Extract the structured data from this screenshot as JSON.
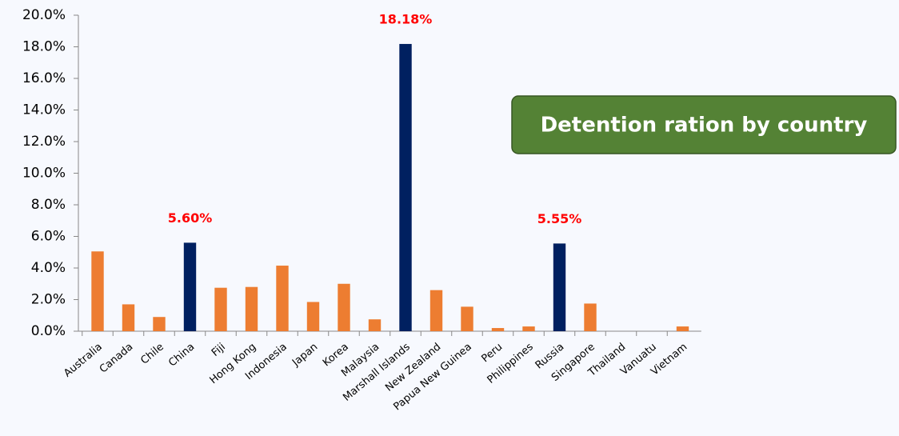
{
  "chart_data": {
    "type": "bar",
    "title": "Detention ration by country",
    "categories": [
      "Australia",
      "Canada",
      "Chile",
      "China",
      "Fiji",
      "Hong Kong",
      "Indonesia",
      "Japan",
      "Korea",
      "Malaysia",
      "Marshall Islands",
      "New Zealand",
      "Papua New Guinea",
      "Peru",
      "Philippines",
      "Russia",
      "Singapore",
      "Thailand",
      "Vanuatu",
      "Vietnam"
    ],
    "values": [
      5.05,
      1.7,
      0.9,
      5.6,
      2.75,
      2.8,
      4.15,
      1.85,
      3.0,
      0.75,
      18.18,
      2.6,
      1.55,
      0.2,
      0.3,
      5.55,
      1.75,
      0,
      0,
      0.3
    ],
    "value_labels": [
      null,
      null,
      null,
      "5.60%",
      null,
      null,
      null,
      null,
      null,
      null,
      "18.18%",
      null,
      null,
      null,
      null,
      "5.55%",
      null,
      null,
      null,
      null
    ],
    "colors": [
      "#ed7d31",
      "#ed7d31",
      "#ed7d31",
      "#002060",
      "#ed7d31",
      "#ed7d31",
      "#ed7d31",
      "#ed7d31",
      "#ed7d31",
      "#ed7d31",
      "#002060",
      "#ed7d31",
      "#ed7d31",
      "#ed7d31",
      "#ed7d31",
      "#002060",
      "#ed7d31",
      "#ed7d31",
      "#ed7d31",
      "#ed7d31"
    ],
    "ylim": [
      0,
      20
    ],
    "yticks": [
      {
        "value": 0,
        "label": "0.0%"
      },
      {
        "value": 2,
        "label": "2.0%"
      },
      {
        "value": 4,
        "label": "4.0%"
      },
      {
        "value": 6,
        "label": "6.0%"
      },
      {
        "value": 8,
        "label": "8.0%"
      },
      {
        "value": 10,
        "label": "10.0%"
      },
      {
        "value": 12,
        "label": "12.0%"
      },
      {
        "value": 14,
        "label": "14.0%"
      },
      {
        "value": 16,
        "label": "16.0%"
      },
      {
        "value": 18,
        "label": "18.0%"
      },
      {
        "value": 20,
        "label": "20.0%"
      }
    ],
    "grid": false
  }
}
